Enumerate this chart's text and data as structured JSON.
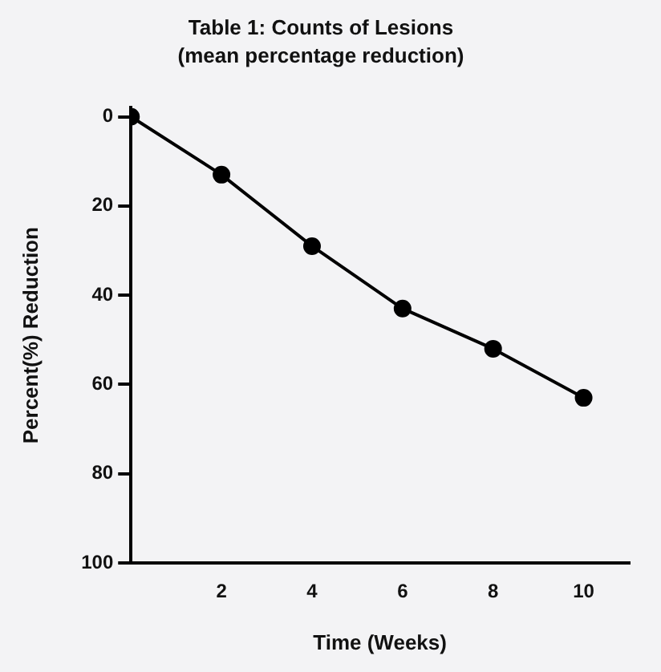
{
  "chart_data": {
    "type": "line",
    "title": "Table 1: Counts of Lesions",
    "subtitle": "(mean percentage reduction)",
    "xlabel": "Time (Weeks)",
    "ylabel": "Percent(%) Reduction",
    "x": [
      0,
      2,
      4,
      6,
      8,
      10
    ],
    "series": [
      {
        "color": "#000000",
        "values": [
          0,
          13,
          29,
          43,
          52,
          63
        ]
      }
    ],
    "xlim": [
      0,
      11
    ],
    "xticks": [
      2,
      4,
      6,
      8,
      10
    ],
    "ylim": [
      100,
      -2
    ],
    "yticks": [
      0,
      20,
      40,
      60,
      80,
      100
    ],
    "grid": false,
    "legend": false,
    "marker": "circle",
    "line_style": "solid"
  }
}
